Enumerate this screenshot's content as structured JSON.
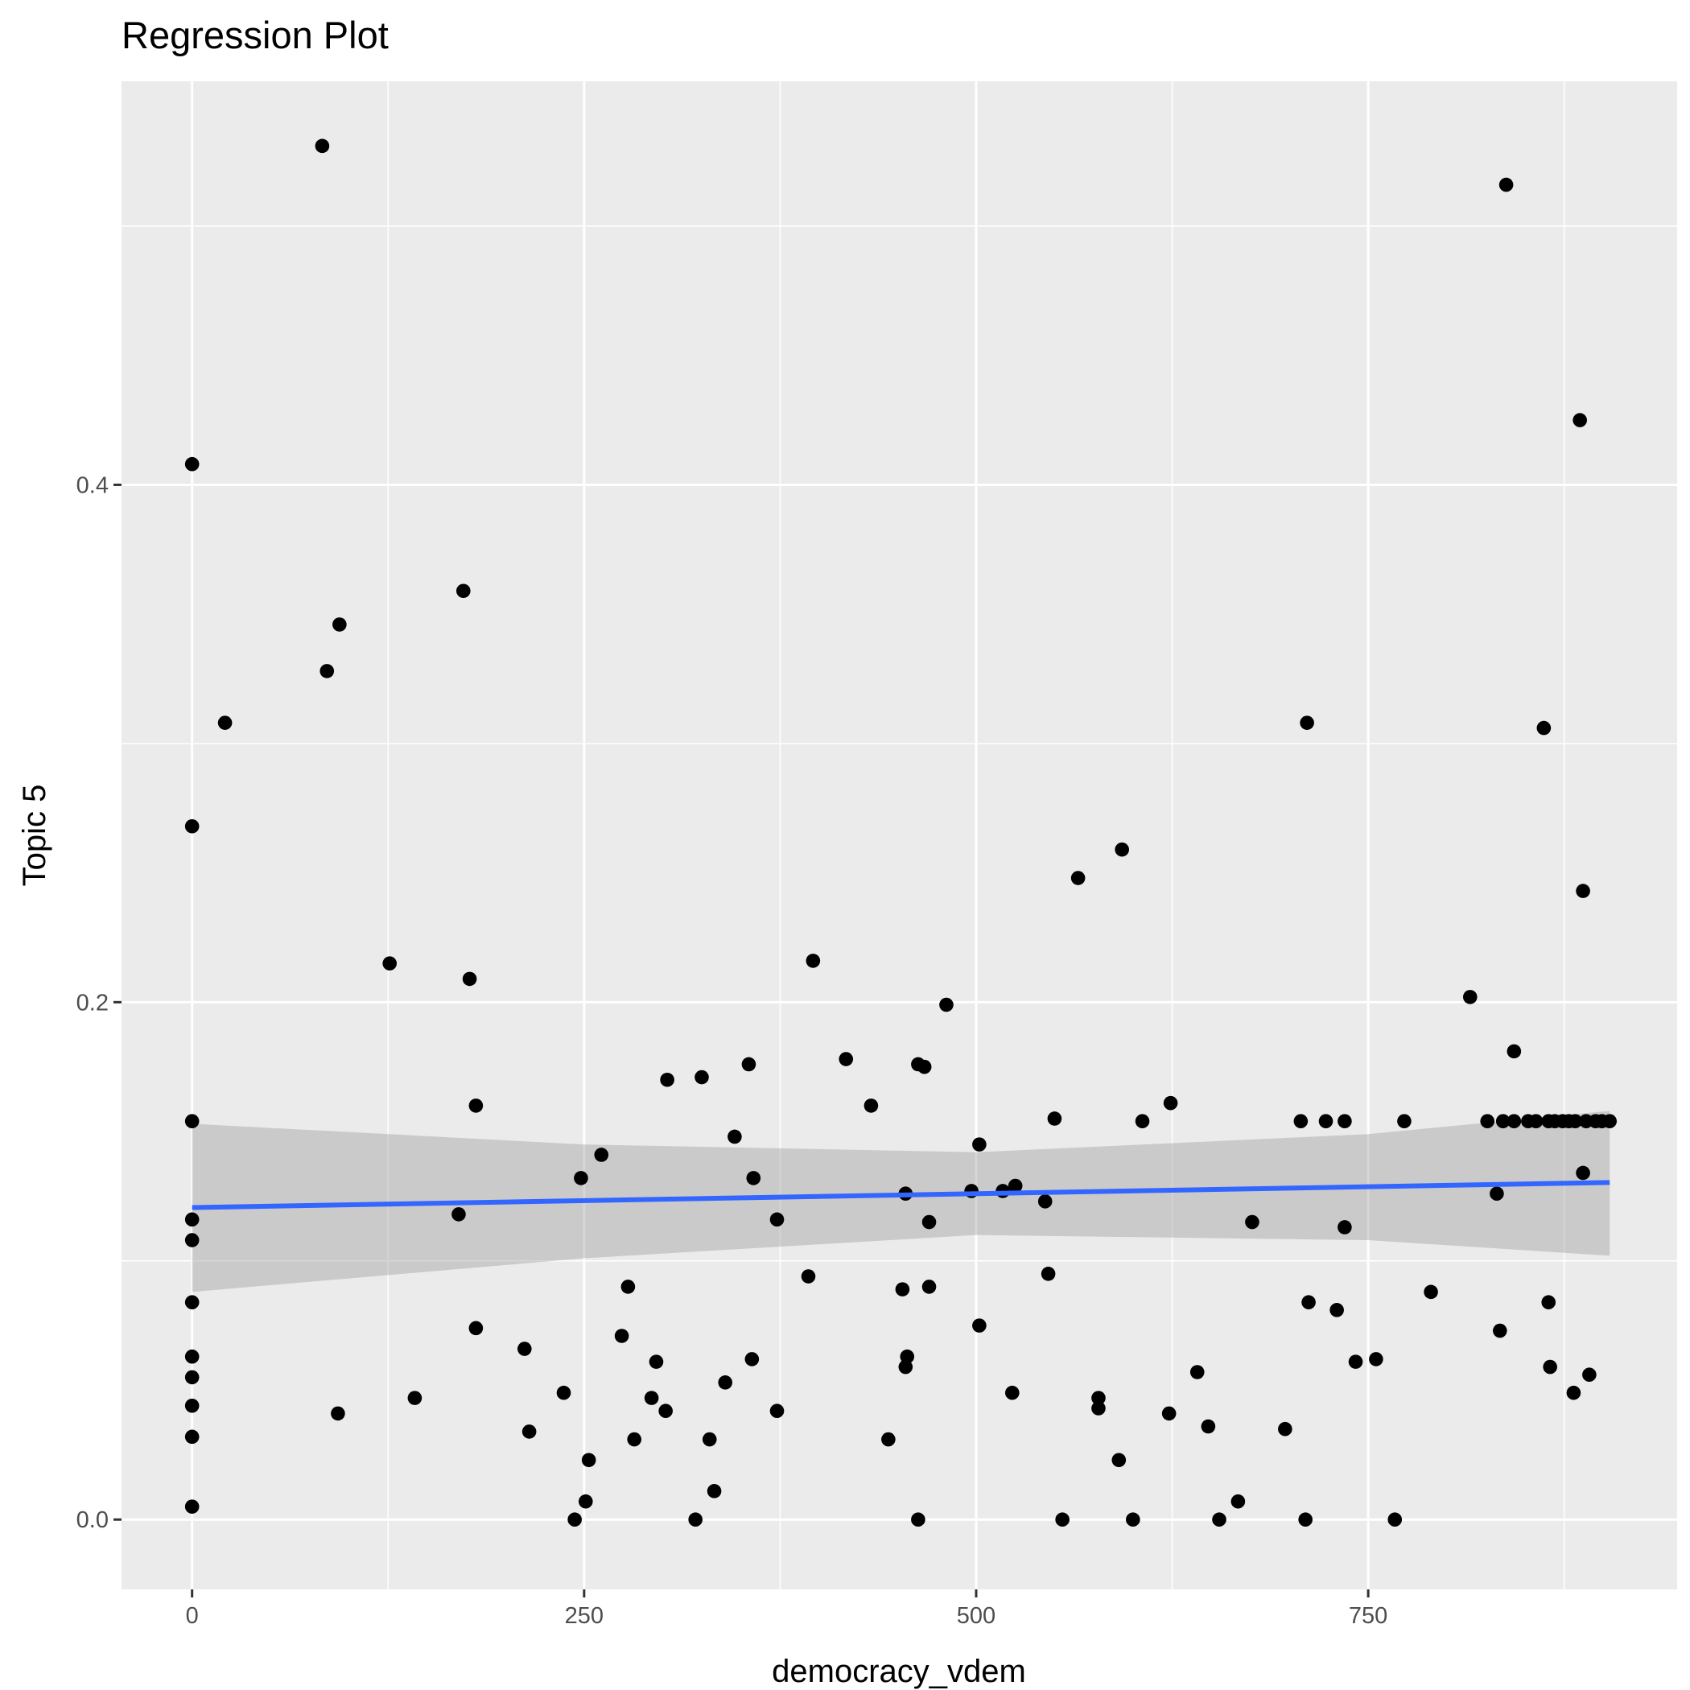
{
  "chart_data": {
    "type": "scatter",
    "title": "Regression Plot",
    "xlabel": "democracy_vdem",
    "ylabel": "Topic 5",
    "xlim": [
      -45,
      947
    ],
    "ylim": [
      -0.027,
      0.556
    ],
    "xticks": [
      0,
      250,
      500,
      750
    ],
    "xtick_labels": [
      "0",
      "250",
      "500",
      "750"
    ],
    "xminor": [
      125,
      375,
      625,
      875
    ],
    "yticks": [
      0.0,
      0.2,
      0.4
    ],
    "ytick_labels": [
      "0.0",
      "0.2",
      "0.4"
    ],
    "yminor": [
      0.1,
      0.3,
      0.5
    ],
    "grid": true,
    "colors": {
      "panel": "#EBEBEB",
      "grid": "#FFFFFF",
      "point": "#000000",
      "line": "#3366FF",
      "band": "#999999"
    },
    "points": [
      [
        83,
        0.531
      ],
      [
        838,
        0.516
      ],
      [
        885,
        0.425
      ],
      [
        0,
        0.408
      ],
      [
        173,
        0.359
      ],
      [
        94,
        0.346
      ],
      [
        86,
        0.328
      ],
      [
        21,
        0.308
      ],
      [
        711,
        0.308
      ],
      [
        862,
        0.306
      ],
      [
        0,
        0.268
      ],
      [
        593,
        0.259
      ],
      [
        565,
        0.248
      ],
      [
        887,
        0.243
      ],
      [
        126,
        0.215
      ],
      [
        396,
        0.216
      ],
      [
        177,
        0.209
      ],
      [
        815,
        0.202
      ],
      [
        481,
        0.199
      ],
      [
        843,
        0.181
      ],
      [
        417,
        0.178
      ],
      [
        355,
        0.176
      ],
      [
        463,
        0.176
      ],
      [
        467,
        0.175
      ],
      [
        325,
        0.171
      ],
      [
        303,
        0.17
      ],
      [
        181,
        0.16
      ],
      [
        433,
        0.16
      ],
      [
        624,
        0.161
      ],
      [
        0,
        0.154
      ],
      [
        550,
        0.155
      ],
      [
        606,
        0.154
      ],
      [
        707,
        0.154
      ],
      [
        723,
        0.154
      ],
      [
        735,
        0.154
      ],
      [
        773,
        0.154
      ],
      [
        826,
        0.154
      ],
      [
        836,
        0.154
      ],
      [
        843,
        0.154
      ],
      [
        852,
        0.154
      ],
      [
        857,
        0.154
      ],
      [
        865,
        0.154
      ],
      [
        869,
        0.154
      ],
      [
        874,
        0.154
      ],
      [
        878,
        0.154
      ],
      [
        882,
        0.154
      ],
      [
        889,
        0.154
      ],
      [
        895,
        0.154
      ],
      [
        899,
        0.154
      ],
      [
        904,
        0.154
      ],
      [
        346,
        0.148
      ],
      [
        502,
        0.145
      ],
      [
        261,
        0.141
      ],
      [
        248,
        0.132
      ],
      [
        358,
        0.132
      ],
      [
        887,
        0.134
      ],
      [
        497,
        0.127
      ],
      [
        517,
        0.127
      ],
      [
        525,
        0.129
      ],
      [
        455,
        0.126
      ],
      [
        832,
        0.126
      ],
      [
        544,
        0.123
      ],
      [
        170,
        0.118
      ],
      [
        0,
        0.116
      ],
      [
        373,
        0.116
      ],
      [
        470,
        0.115
      ],
      [
        676,
        0.115
      ],
      [
        735,
        0.113
      ],
      [
        0,
        0.108
      ],
      [
        546,
        0.095
      ],
      [
        393,
        0.094
      ],
      [
        278,
        0.09
      ],
      [
        470,
        0.09
      ],
      [
        453,
        0.089
      ],
      [
        790,
        0.088
      ],
      [
        0,
        0.084
      ],
      [
        712,
        0.084
      ],
      [
        865,
        0.084
      ],
      [
        730,
        0.081
      ],
      [
        502,
        0.075
      ],
      [
        181,
        0.074
      ],
      [
        834,
        0.073
      ],
      [
        274,
        0.071
      ],
      [
        212,
        0.066
      ],
      [
        0,
        0.063
      ],
      [
        456,
        0.063
      ],
      [
        357,
        0.062
      ],
      [
        296,
        0.061
      ],
      [
        755,
        0.062
      ],
      [
        742,
        0.061
      ],
      [
        455,
        0.059
      ],
      [
        866,
        0.059
      ],
      [
        641,
        0.057
      ],
      [
        0,
        0.055
      ],
      [
        891,
        0.056
      ],
      [
        340,
        0.053
      ],
      [
        237,
        0.049
      ],
      [
        523,
        0.049
      ],
      [
        881,
        0.049
      ],
      [
        142,
        0.047
      ],
      [
        293,
        0.047
      ],
      [
        578,
        0.047
      ],
      [
        0,
        0.044
      ],
      [
        578,
        0.043
      ],
      [
        373,
        0.042
      ],
      [
        302,
        0.042
      ],
      [
        93,
        0.041
      ],
      [
        623,
        0.041
      ],
      [
        648,
        0.036
      ],
      [
        697,
        0.035
      ],
      [
        215,
        0.034
      ],
      [
        0,
        0.032
      ],
      [
        444,
        0.031
      ],
      [
        330,
        0.031
      ],
      [
        282,
        0.031
      ],
      [
        591,
        0.023
      ],
      [
        253,
        0.023
      ],
      [
        333,
        0.011
      ],
      [
        667,
        0.007
      ],
      [
        251,
        0.007
      ],
      [
        0,
        0.005
      ],
      [
        244,
        0.0
      ],
      [
        321,
        0.0
      ],
      [
        463,
        0.0
      ],
      [
        555,
        0.0
      ],
      [
        600,
        0.0
      ],
      [
        655,
        0.0
      ],
      [
        710,
        0.0
      ],
      [
        767,
        0.0
      ]
    ],
    "regression": {
      "x": [
        0,
        904
      ],
      "y": [
        0.1206,
        0.1303
      ]
    },
    "confidence_band": {
      "x": [
        0,
        250,
        500,
        750,
        904
      ],
      "lower": [
        0.088,
        0.101,
        0.11,
        0.108,
        0.102
      ],
      "upper": [
        0.153,
        0.145,
        0.142,
        0.149,
        0.158
      ]
    }
  }
}
